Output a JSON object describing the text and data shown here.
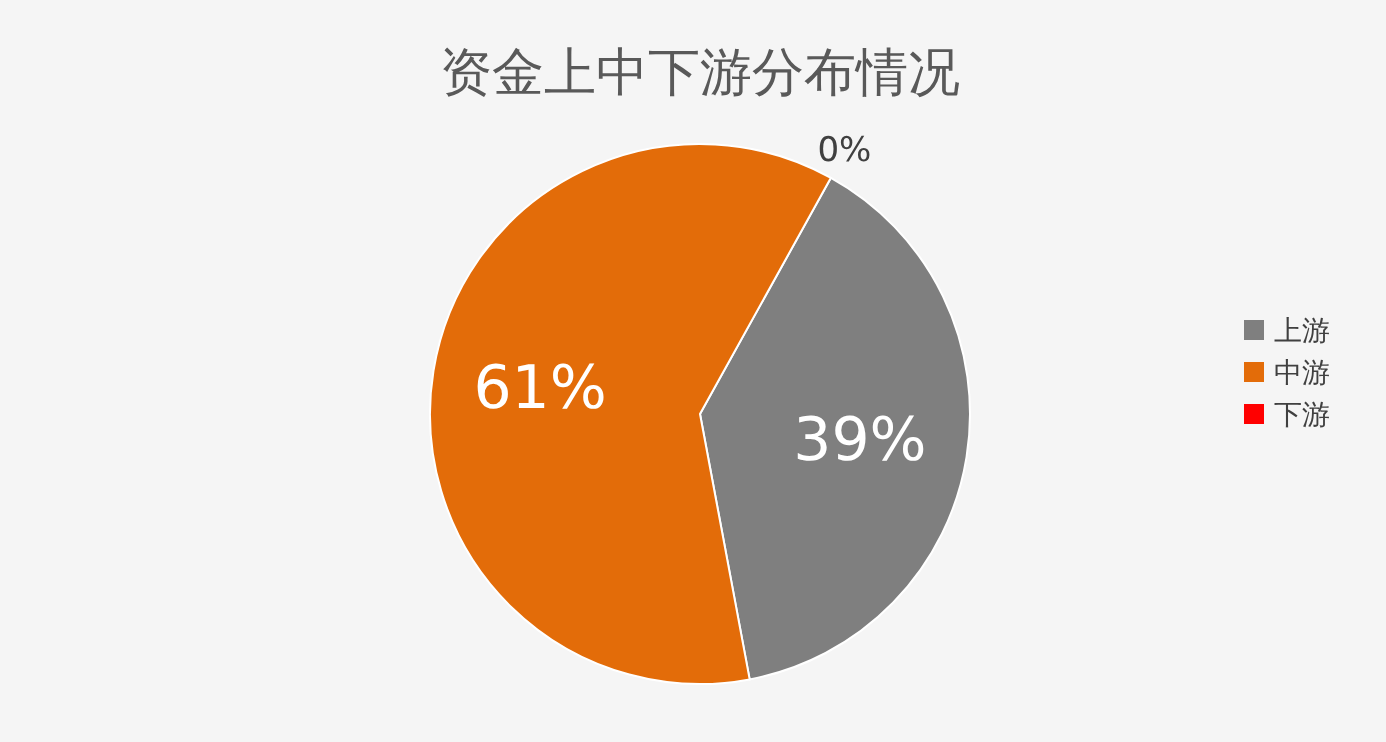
{
  "chart_data": {
    "type": "pie",
    "title": "资金上中下游分布情况",
    "categories": [
      "上游",
      "中游",
      "下游"
    ],
    "values": [
      39,
      61,
      0
    ],
    "colors": [
      "#7f7f7f",
      "#e36c09",
      "#ff0000"
    ],
    "value_labels": [
      "39%",
      "61%",
      "0%"
    ],
    "legend": "right"
  }
}
